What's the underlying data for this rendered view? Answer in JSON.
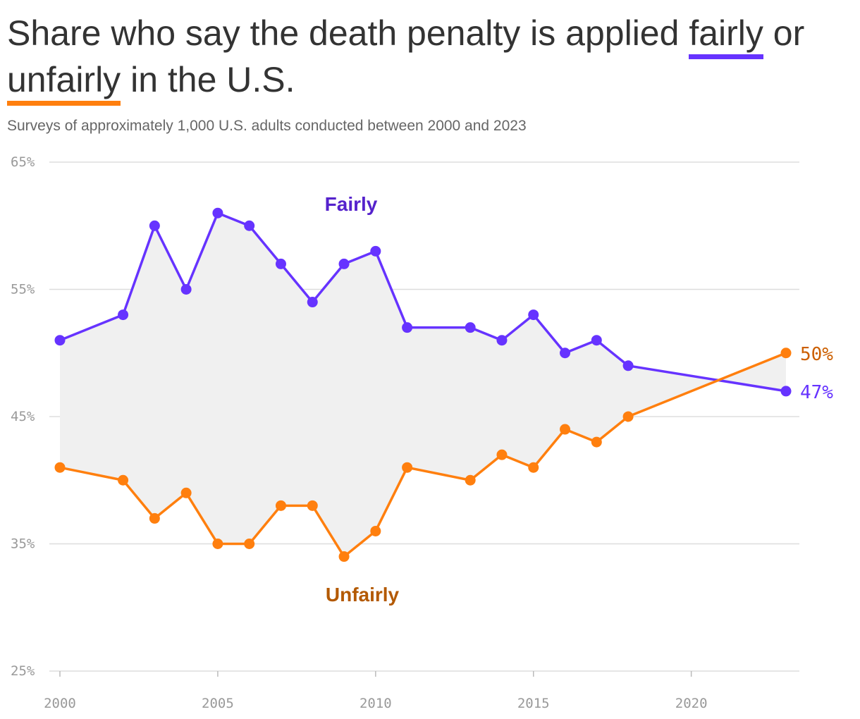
{
  "chart_data": {
    "type": "line",
    "title_parts": {
      "before": "Share who say the death penalty is applied ",
      "fairly": "fairly",
      "middle": " or ",
      "unfairly": "unfairly",
      "after": " in the U.S."
    },
    "subtitle": "Surveys of approximately 1,000 U.S. adults conducted between 2000 and 2023",
    "ylim": [
      25,
      65
    ],
    "xlim": [
      2000,
      2023
    ],
    "y_ticks": [
      {
        "value": 65,
        "label": "65%"
      },
      {
        "value": 55,
        "label": "55%"
      },
      {
        "value": 45,
        "label": "45%"
      },
      {
        "value": 35,
        "label": "35%"
      },
      {
        "value": 25,
        "label": "25%"
      }
    ],
    "x_ticks": [
      {
        "value": 2000,
        "label": "2000"
      },
      {
        "value": 2005,
        "label": "2005"
      },
      {
        "value": 2010,
        "label": "2010"
      },
      {
        "value": 2015,
        "label": "2015"
      },
      {
        "value": 2020,
        "label": "2020"
      }
    ],
    "grid": true,
    "series": [
      {
        "name": "Fairly",
        "color": "#6633ff",
        "label_color": "#5522cc",
        "end_label": "47%",
        "x": [
          2000,
          2002,
          2003,
          2004,
          2005,
          2006,
          2007,
          2008,
          2009,
          2010,
          2011,
          2013,
          2014,
          2015,
          2016,
          2017,
          2018,
          2023
        ],
        "y": [
          51,
          53,
          60,
          55,
          61,
          60,
          57,
          54,
          57,
          58,
          52,
          52,
          51,
          53,
          50,
          51,
          49,
          47
        ]
      },
      {
        "name": "Unfairly",
        "color": "#ff7f0e",
        "label_color": "#b35900",
        "end_label": "50%",
        "x": [
          2000,
          2002,
          2003,
          2004,
          2005,
          2006,
          2007,
          2008,
          2009,
          2010,
          2011,
          2013,
          2014,
          2015,
          2016,
          2017,
          2018,
          2023
        ],
        "y": [
          41,
          40,
          37,
          39,
          35,
          35,
          38,
          38,
          34,
          36,
          41,
          40,
          42,
          41,
          44,
          43,
          45,
          50
        ]
      }
    ],
    "area_fill": "#f0f0f0"
  }
}
